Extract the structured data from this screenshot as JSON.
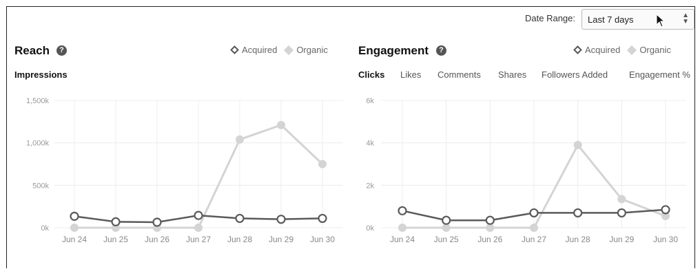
{
  "date_range": {
    "label": "Date Range:",
    "value": "Last 7 days"
  },
  "colors": {
    "acquired": "#5a5a5a",
    "organic": "#d4d4d4",
    "grid": "#ececec"
  },
  "reach": {
    "title": "Reach",
    "help": "?",
    "legend": {
      "acquired": "Acquired",
      "organic": "Organic"
    },
    "subtab": "Impressions"
  },
  "engagement": {
    "title": "Engagement",
    "help": "?",
    "legend": {
      "acquired": "Acquired",
      "organic": "Organic"
    },
    "tabs": [
      "Clicks",
      "Likes",
      "Comments",
      "Shares",
      "Followers Added",
      "Engagement %"
    ]
  },
  "chart_data": [
    {
      "type": "line",
      "categories": [
        "Jun 24",
        "Jun 25",
        "Jun 26",
        "Jun 27",
        "Jun 28",
        "Jun 29",
        "Jun 30"
      ],
      "yticks": [
        "0k",
        "500k",
        "1,000k",
        "1,500k"
      ],
      "ylim": [
        0,
        1500
      ],
      "series": [
        {
          "name": "Acquired",
          "values": [
            135,
            70,
            65,
            145,
            110,
            100,
            110
          ]
        },
        {
          "name": "Organic",
          "values": [
            0,
            0,
            0,
            0,
            1040,
            1210,
            750
          ]
        }
      ],
      "grid": true,
      "legend": "top-right"
    },
    {
      "type": "line",
      "categories": [
        "Jun 24",
        "Jun 25",
        "Jun 26",
        "Jun 27",
        "Jun 28",
        "Jun 29",
        "Jun 30"
      ],
      "yticks": [
        "0k",
        "2k",
        "4k",
        "6k"
      ],
      "ylim": [
        0,
        6
      ],
      "series": [
        {
          "name": "Acquired",
          "values": [
            0.8,
            0.35,
            0.35,
            0.7,
            0.7,
            0.7,
            0.85
          ]
        },
        {
          "name": "Organic",
          "values": [
            0,
            0,
            0,
            0,
            3.9,
            1.35,
            0.55
          ]
        }
      ],
      "grid": true,
      "legend": "top-right"
    }
  ]
}
